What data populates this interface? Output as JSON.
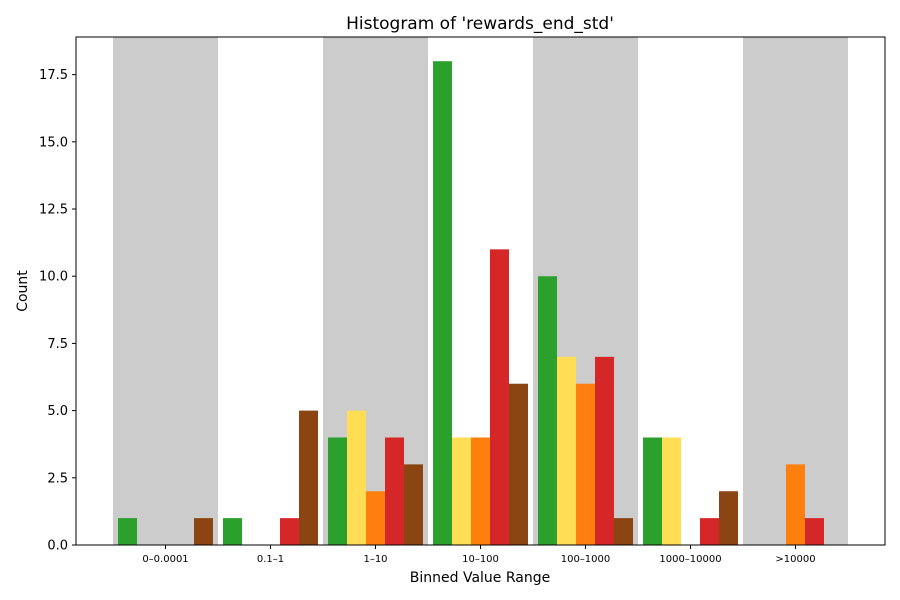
{
  "chart_data": {
    "type": "bar",
    "title": "Histogram of 'rewards_end_std'",
    "xlabel": "Binned Value Range",
    "ylabel": "Count",
    "categories": [
      "0–0.0001",
      "0.1–1",
      "1–10",
      "10–100",
      "100–1000",
      "1000–10000",
      ">10000"
    ],
    "ylim": [
      0,
      18.9
    ],
    "yticks": [
      0.0,
      2.5,
      5.0,
      7.5,
      10.0,
      12.5,
      15.0,
      17.5
    ],
    "ytick_labels": [
      "0.0",
      "2.5",
      "5.0",
      "7.5",
      "10.0",
      "12.5",
      "15.0",
      "17.5"
    ],
    "grid": false,
    "legend": "none",
    "shaded_bands": [
      0,
      2,
      4,
      6
    ],
    "band_color": "#cccccc",
    "series": [
      {
        "color": "#2ca02c",
        "values": [
          1,
          1,
          4,
          18,
          10,
          4,
          0
        ]
      },
      {
        "color": "#ffdd55",
        "values": [
          0,
          0,
          5,
          4,
          7,
          4,
          0
        ]
      },
      {
        "color": "#ff7f0e",
        "values": [
          0,
          0,
          2,
          4,
          6,
          0,
          3
        ]
      },
      {
        "color": "#d62728",
        "values": [
          0,
          1,
          4,
          11,
          7,
          1,
          1
        ]
      },
      {
        "color": "#8b4513",
        "values": [
          1,
          5,
          3,
          6,
          1,
          2,
          0
        ]
      }
    ]
  }
}
